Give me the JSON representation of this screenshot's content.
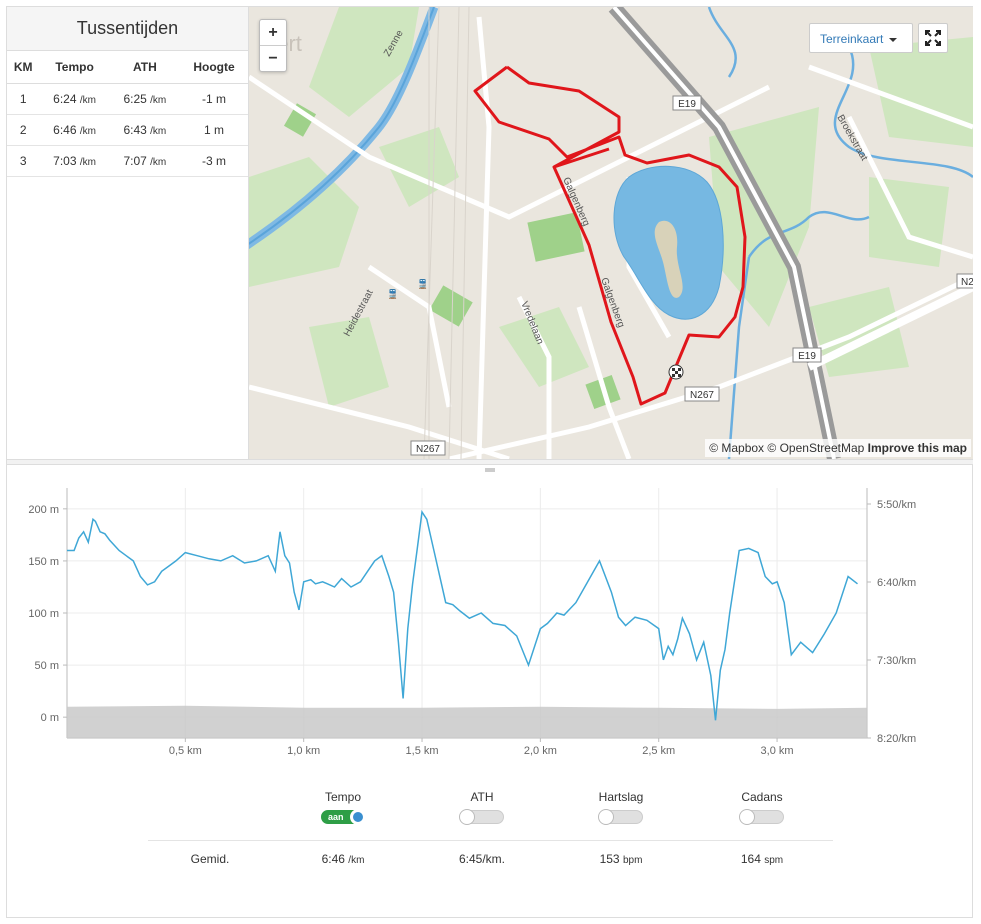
{
  "splits": {
    "title": "Tussentijden",
    "headers": [
      "KM",
      "Tempo",
      "ATH",
      "Hoogte"
    ],
    "rows": [
      {
        "km": "1",
        "tempo": "6:24",
        "tempo_unit": "/km",
        "ath": "6:25",
        "ath_unit": "/km",
        "height": "-1 m"
      },
      {
        "km": "2",
        "tempo": "6:46",
        "tempo_unit": "/km",
        "ath": "6:43",
        "ath_unit": "/km",
        "height": "1 m"
      },
      {
        "km": "3",
        "tempo": "7:03",
        "tempo_unit": "/km",
        "ath": "7:07",
        "ath_unit": "/km",
        "height": "-3 m"
      }
    ]
  },
  "map": {
    "zoom_in": "+",
    "zoom_out": "−",
    "layer_button": "Terreinkaart",
    "attribution_mapbox": "© Mapbox",
    "attribution_osm": "© OpenStreetMap",
    "attribution_improve": "Improve this map",
    "labels": {
      "e19_top": "E19",
      "e19_bottom": "E19",
      "n267_mid": "N267",
      "n267_bottom": "N267",
      "n2_edge": "N2",
      "zenne": "Zenne",
      "heidestraat": "Heidestraat",
      "vredelaan": "Vredelaan",
      "galgenberg_1": "Galgenberg",
      "galgenberg_2": "Galgenberg",
      "broekstraat": "Broekstraat",
      "town": "eert"
    },
    "colors": {
      "route": "#e0161b",
      "water": "#6fb4e1",
      "park": "#b5dba0"
    }
  },
  "chart_data": {
    "type": "line",
    "xlabel": "",
    "x_ticks": [
      "0,5 km",
      "1,0 km",
      "1,5 km",
      "2,0 km",
      "2,5 km",
      "3,0 km"
    ],
    "x_tick_values": [
      0.5,
      1.0,
      1.5,
      2.0,
      2.5,
      3.0
    ],
    "xlim": [
      0,
      3.38
    ],
    "left_axis": {
      "label": "",
      "ticks": [
        "0 m",
        "50 m",
        "100 m",
        "150 m",
        "200 m"
      ],
      "tick_values": [
        0,
        50,
        100,
        150,
        200
      ],
      "ylim": [
        -20,
        220
      ]
    },
    "right_axis": {
      "label": "",
      "ticks": [
        "5:50/km",
        "6:40/km",
        "7:30/km",
        "8:20/km"
      ]
    },
    "grid": true,
    "series": [
      {
        "name": "Tempo",
        "color": "#3fa7d6",
        "axis": "left",
        "x": [
          0,
          0.03,
          0.05,
          0.07,
          0.09,
          0.11,
          0.12,
          0.14,
          0.16,
          0.18,
          0.2,
          0.22,
          0.25,
          0.28,
          0.31,
          0.34,
          0.37,
          0.4,
          0.43,
          0.46,
          0.5,
          0.55,
          0.6,
          0.65,
          0.7,
          0.75,
          0.8,
          0.85,
          0.88,
          0.9,
          0.92,
          0.94,
          0.96,
          0.98,
          1.0,
          1.03,
          1.05,
          1.08,
          1.1,
          1.13,
          1.16,
          1.2,
          1.24,
          1.27,
          1.3,
          1.33,
          1.36,
          1.38,
          1.4,
          1.42,
          1.44,
          1.46,
          1.48,
          1.5,
          1.52,
          1.55,
          1.58,
          1.6,
          1.63,
          1.66,
          1.7,
          1.75,
          1.8,
          1.85,
          1.9,
          1.95,
          2.0,
          2.03,
          2.05,
          2.07,
          2.1,
          2.15,
          2.2,
          2.25,
          2.3,
          2.33,
          2.36,
          2.4,
          2.45,
          2.5,
          2.52,
          2.54,
          2.56,
          2.58,
          2.6,
          2.63,
          2.66,
          2.69,
          2.72,
          2.74,
          2.76,
          2.78,
          2.8,
          2.84,
          2.88,
          2.92,
          2.95,
          2.98,
          3.0,
          3.03,
          3.06,
          3.1,
          3.15,
          3.2,
          3.25,
          3.3,
          3.34
        ],
        "values": [
          160,
          160,
          172,
          178,
          168,
          190,
          188,
          178,
          176,
          170,
          165,
          160,
          155,
          150,
          135,
          127,
          130,
          140,
          145,
          150,
          158,
          155,
          152,
          150,
          155,
          148,
          150,
          155,
          140,
          178,
          155,
          148,
          120,
          103,
          130,
          132,
          128,
          130,
          128,
          125,
          133,
          125,
          130,
          140,
          150,
          155,
          135,
          120,
          72,
          18,
          85,
          128,
          162,
          197,
          190,
          160,
          130,
          110,
          108,
          102,
          95,
          100,
          90,
          88,
          78,
          50,
          85,
          90,
          95,
          100,
          98,
          110,
          130,
          150,
          120,
          96,
          88,
          96,
          93,
          85,
          55,
          68,
          60,
          75,
          95,
          80,
          55,
          72,
          40,
          -3,
          45,
          65,
          100,
          160,
          162,
          158,
          135,
          128,
          130,
          110,
          60,
          72,
          62,
          80,
          100,
          135,
          128
        ]
      },
      {
        "name": "Hoogte",
        "color": "#c9c9c9",
        "axis": "left",
        "x": [
          0,
          0.5,
          1.0,
          1.5,
          2.0,
          2.5,
          3.0,
          3.38
        ],
        "values": [
          10,
          11,
          9,
          9,
          10,
          9,
          8,
          9
        ]
      }
    ]
  },
  "toggles": [
    {
      "label": "Tempo",
      "state": "aan",
      "on": true
    },
    {
      "label": "ATH",
      "state": "",
      "on": false
    },
    {
      "label": "Hartslag",
      "state": "",
      "on": false
    },
    {
      "label": "Cadans",
      "state": "",
      "on": false
    }
  ],
  "averages": {
    "label": "Gemid.",
    "tempo": "6:46",
    "tempo_unit": "/km",
    "ath": "6:45/km.",
    "hartslag": "153",
    "hartslag_unit": "bpm",
    "cadans": "164",
    "cadans_unit": "spm"
  }
}
